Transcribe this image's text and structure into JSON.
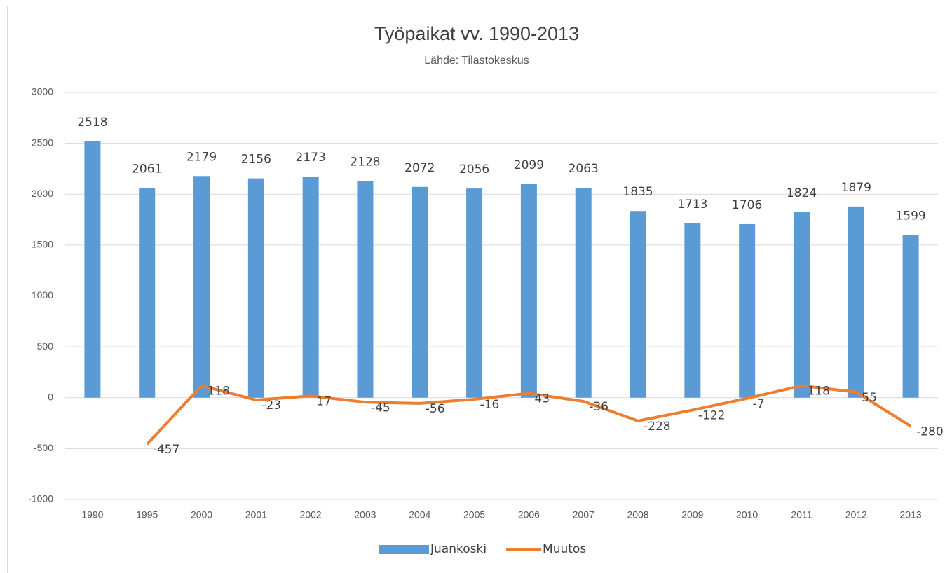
{
  "chart_data": {
    "type": "bar",
    "title": "Työpaikat vv. 1990-2013",
    "subtitle": "Lähde: Tilastokeskus",
    "categories": [
      "1990",
      "1995",
      "2000",
      "2001",
      "2002",
      "2003",
      "2004",
      "2005",
      "2006",
      "2007",
      "2008",
      "2009",
      "2010",
      "2011",
      "2012",
      "2013"
    ],
    "series": [
      {
        "name": "Juankoski",
        "type": "bar",
        "color": "#5b9bd5",
        "values": [
          2518,
          2061,
          2179,
          2156,
          2173,
          2128,
          2072,
          2056,
          2099,
          2063,
          1835,
          1713,
          1706,
          1824,
          1879,
          1599
        ]
      },
      {
        "name": "Muutos",
        "type": "line",
        "color": "#ed7d31",
        "values": [
          null,
          -457,
          118,
          -23,
          17,
          -45,
          -56,
          -16,
          43,
          -36,
          -228,
          -122,
          -7,
          118,
          55,
          -280
        ]
      }
    ],
    "ylim": [
      -1000,
      3000
    ],
    "yticks": [
      -1000,
      -500,
      0,
      500,
      1000,
      1500,
      2000,
      2500,
      3000
    ],
    "grid": true,
    "legend": "bottom"
  }
}
